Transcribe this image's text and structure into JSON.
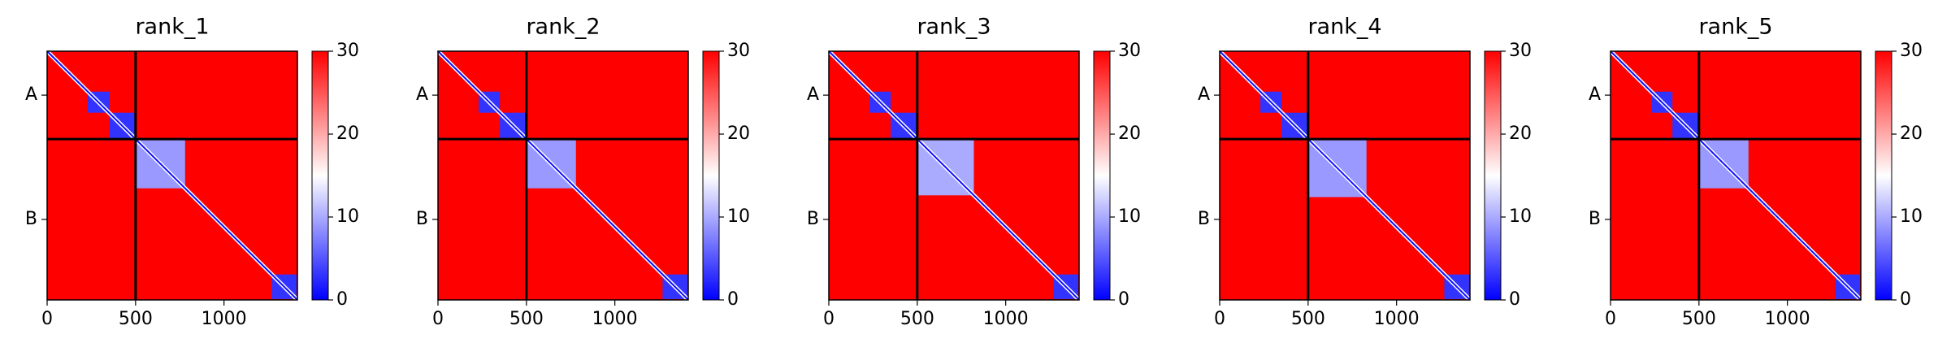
{
  "chart_data": [
    {
      "type": "heatmap",
      "title": "rank_1",
      "xlim": [
        0,
        1415
      ],
      "ylim": [
        0,
        1415
      ],
      "xticks": [
        0,
        500,
        1000
      ],
      "yticks": [
        {
          "value": 250,
          "label": "A"
        },
        {
          "value": 957,
          "label": "B"
        }
      ],
      "chain_boundaries": [
        500
      ],
      "clim": [
        0,
        30
      ],
      "cticks": [
        0,
        10,
        20,
        30
      ],
      "background": 30,
      "diagonal": 1,
      "regions": [
        {
          "x": [
            230,
            350
          ],
          "y": [
            230,
            350
          ],
          "value": 3
        },
        {
          "x": [
            350,
            500
          ],
          "y": [
            350,
            500
          ],
          "value": 3
        },
        {
          "x": [
            500,
            780
          ],
          "y": [
            500,
            780
          ],
          "value": 9
        },
        {
          "x": [
            1270,
            1410
          ],
          "y": [
            1270,
            1410
          ],
          "value": 3
        }
      ]
    },
    {
      "type": "heatmap",
      "title": "rank_2",
      "xlim": [
        0,
        1415
      ],
      "ylim": [
        0,
        1415
      ],
      "xticks": [
        0,
        500,
        1000
      ],
      "yticks": [
        {
          "value": 250,
          "label": "A"
        },
        {
          "value": 957,
          "label": "B"
        }
      ],
      "chain_boundaries": [
        500
      ],
      "clim": [
        0,
        30
      ],
      "cticks": [
        0,
        10,
        20,
        30
      ],
      "background": 30,
      "diagonal": 1,
      "regions": [
        {
          "x": [
            230,
            350
          ],
          "y": [
            230,
            350
          ],
          "value": 3
        },
        {
          "x": [
            350,
            500
          ],
          "y": [
            350,
            500
          ],
          "value": 3
        },
        {
          "x": [
            500,
            780
          ],
          "y": [
            500,
            780
          ],
          "value": 9
        },
        {
          "x": [
            1270,
            1410
          ],
          "y": [
            1270,
            1410
          ],
          "value": 3
        }
      ]
    },
    {
      "type": "heatmap",
      "title": "rank_3",
      "xlim": [
        0,
        1415
      ],
      "ylim": [
        0,
        1415
      ],
      "xticks": [
        0,
        500,
        1000
      ],
      "yticks": [
        {
          "value": 250,
          "label": "A"
        },
        {
          "value": 957,
          "label": "B"
        }
      ],
      "chain_boundaries": [
        500
      ],
      "clim": [
        0,
        30
      ],
      "cticks": [
        0,
        10,
        20,
        30
      ],
      "background": 30,
      "diagonal": 1,
      "regions": [
        {
          "x": [
            230,
            350
          ],
          "y": [
            230,
            350
          ],
          "value": 3
        },
        {
          "x": [
            350,
            500
          ],
          "y": [
            350,
            500
          ],
          "value": 3
        },
        {
          "x": [
            500,
            820
          ],
          "y": [
            500,
            820
          ],
          "value": 10
        },
        {
          "x": [
            1270,
            1410
          ],
          "y": [
            1270,
            1410
          ],
          "value": 3
        }
      ]
    },
    {
      "type": "heatmap",
      "title": "rank_4",
      "xlim": [
        0,
        1415
      ],
      "ylim": [
        0,
        1415
      ],
      "xticks": [
        0,
        500,
        1000
      ],
      "yticks": [
        {
          "value": 250,
          "label": "A"
        },
        {
          "value": 957,
          "label": "B"
        }
      ],
      "chain_boundaries": [
        500
      ],
      "clim": [
        0,
        30
      ],
      "cticks": [
        0,
        10,
        20,
        30
      ],
      "background": 30,
      "diagonal": 1,
      "regions": [
        {
          "x": [
            230,
            350
          ],
          "y": [
            230,
            350
          ],
          "value": 3
        },
        {
          "x": [
            350,
            500
          ],
          "y": [
            350,
            500
          ],
          "value": 3
        },
        {
          "x": [
            500,
            830
          ],
          "y": [
            500,
            830
          ],
          "value": 9
        },
        {
          "x": [
            1270,
            1410
          ],
          "y": [
            1270,
            1410
          ],
          "value": 3
        }
      ]
    },
    {
      "type": "heatmap",
      "title": "rank_5",
      "xlim": [
        0,
        1415
      ],
      "ylim": [
        0,
        1415
      ],
      "xticks": [
        0,
        500,
        1000
      ],
      "yticks": [
        {
          "value": 250,
          "label": "A"
        },
        {
          "value": 957,
          "label": "B"
        }
      ],
      "chain_boundaries": [
        500
      ],
      "clim": [
        0,
        30
      ],
      "cticks": [
        0,
        10,
        20,
        30
      ],
      "background": 30,
      "diagonal": 1,
      "regions": [
        {
          "x": [
            230,
            350
          ],
          "y": [
            230,
            350
          ],
          "value": 3
        },
        {
          "x": [
            350,
            500
          ],
          "y": [
            350,
            500
          ],
          "value": 3
        },
        {
          "x": [
            500,
            780
          ],
          "y": [
            500,
            780
          ],
          "value": 9
        },
        {
          "x": [
            1270,
            1410
          ],
          "y": [
            1270,
            1410
          ],
          "value": 3
        }
      ]
    }
  ]
}
